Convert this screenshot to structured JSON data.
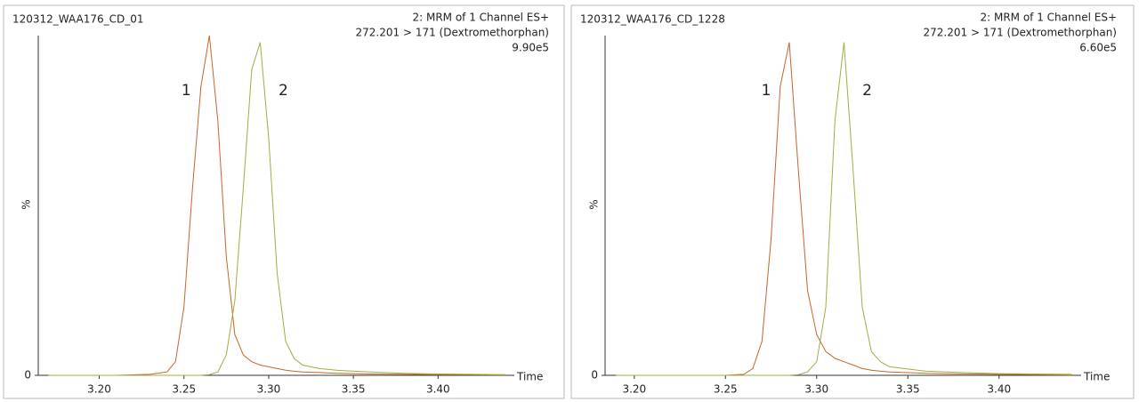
{
  "chart_data": [
    {
      "type": "line",
      "title": "120312_WAA176_CD_01",
      "header": [
        "2: MRM of 1 Channel ES+",
        "272.201 > 171 (Dextromethorphan)",
        "9.90e5"
      ],
      "y_label": "%",
      "x_label": "Time",
      "x": [
        3.17,
        3.19,
        3.21,
        3.23,
        3.24,
        3.245,
        3.25,
        3.255,
        3.26,
        3.265,
        3.27,
        3.275,
        3.28,
        3.285,
        3.29,
        3.295,
        3.3,
        3.305,
        3.31,
        3.315,
        3.32,
        3.33,
        3.34,
        3.36,
        3.38,
        3.4,
        3.42,
        3.44
      ],
      "series": [
        {
          "name": "1",
          "color": "#c8642a",
          "values": [
            0,
            0,
            0,
            0.3,
            1,
            4,
            20,
            55,
            85,
            100,
            75,
            35,
            12,
            6,
            4,
            3,
            2.5,
            2,
            1.5,
            1.2,
            1,
            0.8,
            0.6,
            0.4,
            0.3,
            0.2,
            0.2,
            0.1
          ]
        },
        {
          "name": "2",
          "color": "#9bb040",
          "values": [
            0,
            0,
            0,
            0,
            0,
            0,
            0,
            0,
            0,
            0.2,
            1,
            6,
            22,
            55,
            90,
            98,
            70,
            30,
            10,
            5,
            3,
            2,
            1.5,
            1,
            0.6,
            0.4,
            0.3,
            0.2
          ]
        }
      ],
      "xlim": [
        3.164,
        3.445
      ],
      "ylim": [
        0,
        100
      ],
      "xticks": [
        {
          "value": 3.2,
          "label": "3.20"
        },
        3.25,
        {
          "value": 3.3,
          "label": "3.30"
        },
        3.35,
        {
          "value": 3.4,
          "label": "3.40"
        }
      ],
      "yticks": [
        0
      ]
    },
    {
      "type": "line",
      "title": "120312_WAA176_CD_1228",
      "header": [
        "2: MRM of 1 Channel ES+",
        "272.201 > 171 (Dextromethorphan)",
        "6.60e5"
      ],
      "y_label": "%",
      "x_label": "Time",
      "x": [
        3.19,
        3.21,
        3.23,
        3.25,
        3.26,
        3.265,
        3.27,
        3.275,
        3.28,
        3.285,
        3.29,
        3.295,
        3.3,
        3.305,
        3.31,
        3.315,
        3.32,
        3.325,
        3.33,
        3.335,
        3.34,
        3.36,
        3.38,
        3.4,
        3.42,
        3.44
      ],
      "series": [
        {
          "name": "1",
          "color": "#c8642a",
          "values": [
            0,
            0,
            0,
            0,
            0.3,
            2,
            10,
            40,
            85,
            98,
            60,
            25,
            12,
            7,
            5,
            4,
            3,
            2,
            1.5,
            1.2,
            1,
            0.6,
            0.4,
            0.3,
            0.2,
            0.1
          ]
        },
        {
          "name": "2",
          "color": "#9bb040",
          "values": [
            0,
            0,
            0,
            0,
            0,
            0,
            0,
            0,
            0,
            0,
            0.2,
            1,
            4,
            20,
            75,
            98,
            60,
            20,
            7,
            4,
            2.5,
            1.2,
            0.8,
            0.5,
            0.4,
            0.3
          ]
        }
      ],
      "xlim": [
        3.184,
        3.445
      ],
      "ylim": [
        0,
        100
      ],
      "xticks": [
        {
          "value": 3.2,
          "label": "3.20"
        },
        3.25,
        {
          "value": 3.3,
          "label": "3.30"
        },
        3.35,
        {
          "value": 3.4,
          "label": "3.40"
        }
      ],
      "yticks": [
        0
      ]
    }
  ]
}
